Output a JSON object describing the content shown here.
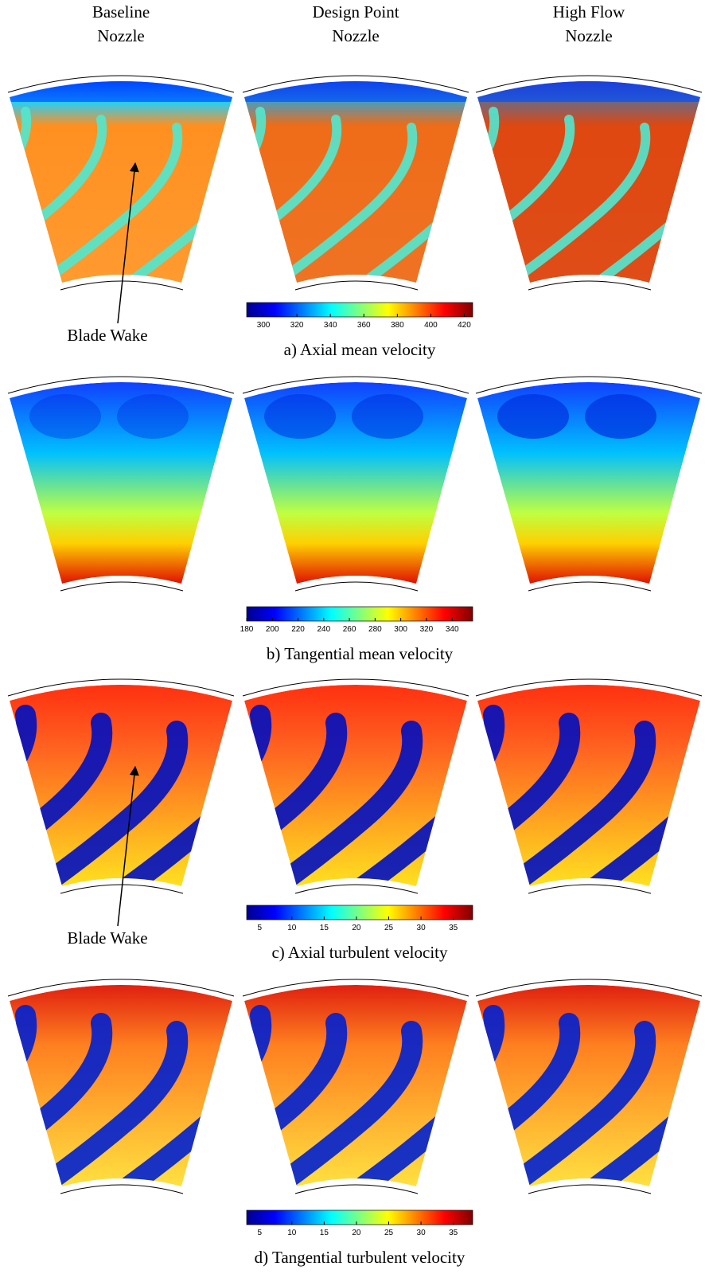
{
  "columns": [
    {
      "line1": "Baseline",
      "line2": "Nozzle"
    },
    {
      "line1": "Design Point",
      "line2": "Nozzle"
    },
    {
      "line1": "High Flow",
      "line2": "Nozzle"
    }
  ],
  "panels": [
    {
      "caption": "a) Axial mean velocity",
      "colorbar": {
        "lim": [
          290,
          425
        ],
        "ticks": [
          300,
          320,
          340,
          360,
          380,
          400,
          420
        ]
      }
    },
    {
      "caption": "b) Tangential mean velocity",
      "colorbar": {
        "lim": [
          180,
          356
        ],
        "ticks": [
          180,
          200,
          220,
          240,
          260,
          280,
          300,
          320,
          340
        ]
      }
    },
    {
      "caption": "c) Axial turbulent velocity",
      "colorbar": {
        "lim": [
          3,
          38
        ],
        "ticks": [
          5,
          10,
          15,
          20,
          25,
          30,
          35
        ]
      }
    },
    {
      "caption": "d) Tangential turbulent velocity",
      "colorbar": {
        "lim": [
          3,
          38
        ],
        "ticks": [
          5,
          10,
          15,
          20,
          25,
          30,
          35
        ]
      }
    }
  ],
  "annotations": [
    {
      "text": "Blade Wake"
    },
    {
      "text": "Blade Wake"
    }
  ]
}
